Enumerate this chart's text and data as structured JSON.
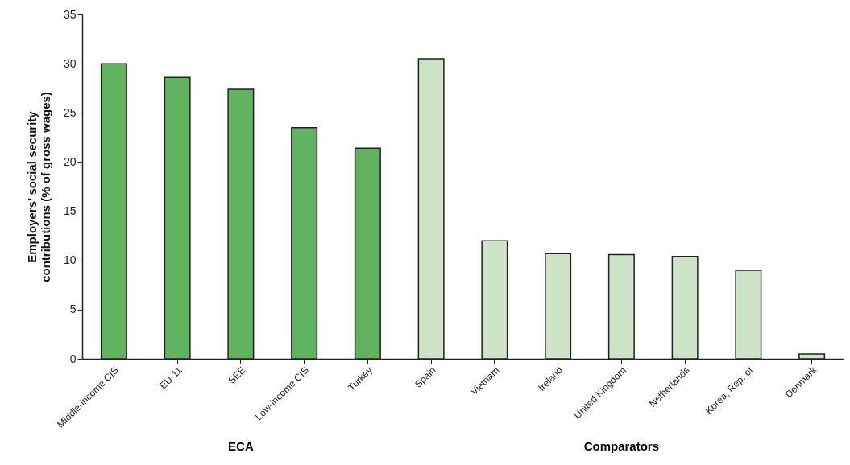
{
  "chart_data": {
    "type": "bar",
    "ylabel": "Employers’ social security contributions (% of gross wages)",
    "categories": [
      "Middle-income CIS",
      "EU-11",
      "SEE",
      "Low-income CIS",
      "Turkey",
      "Spain",
      "Vietnam",
      "Ireland",
      "United Kingdom",
      "Netherlands",
      "Korea, Rep. of",
      "Denmark"
    ],
    "values": [
      30.0,
      28.6,
      27.4,
      23.5,
      21.4,
      30.5,
      12.0,
      10.7,
      10.6,
      10.4,
      9.0,
      0.5
    ],
    "colors": [
      "#62b360",
      "#62b360",
      "#62b360",
      "#62b360",
      "#62b360",
      "#cee4c8",
      "#cee4c8",
      "#cee4c8",
      "#cee4c8",
      "#cee4c8",
      "#cee4c8",
      "#cee4c8"
    ],
    "ylim": [
      0,
      35
    ],
    "yticks": [
      0,
      5,
      10,
      15,
      20,
      25,
      30,
      35
    ],
    "grid": false,
    "annotations": [
      "ECA",
      "Comparators"
    ]
  }
}
